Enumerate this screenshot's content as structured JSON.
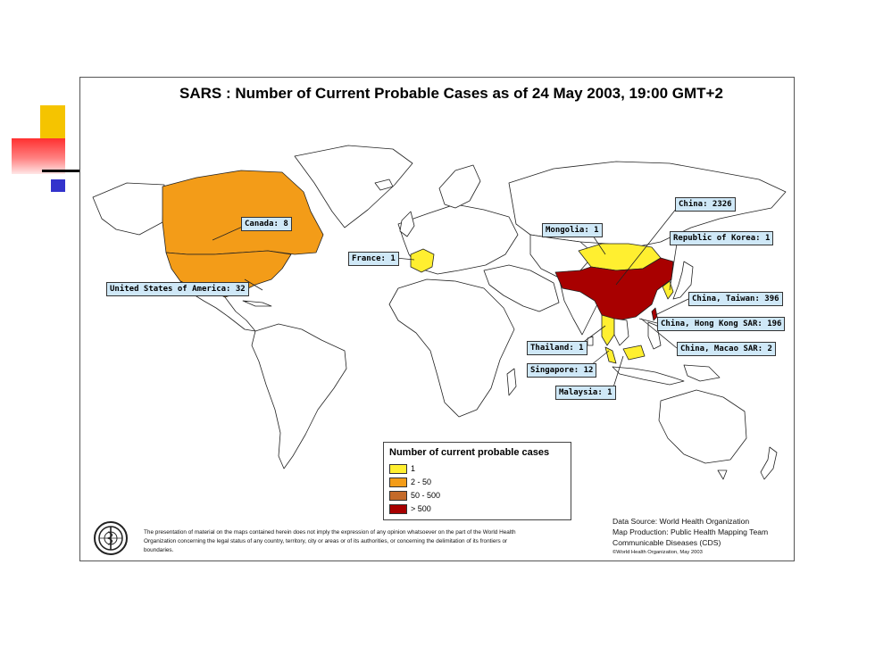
{
  "title": "SARS : Number of Current Probable Cases as of 24 May 2003, 19:00 GMT+2",
  "labels": [
    {
      "key": "canada",
      "text": "Canada: 8"
    },
    {
      "key": "usa",
      "text": "United States of America: 32"
    },
    {
      "key": "france",
      "text": "France: 1"
    },
    {
      "key": "mongolia",
      "text": "Mongolia: 1"
    },
    {
      "key": "china",
      "text": "China: 2326"
    },
    {
      "key": "korea",
      "text": "Republic of Korea: 1"
    },
    {
      "key": "taiwan",
      "text": "China, Taiwan: 396"
    },
    {
      "key": "hongkong",
      "text": "China, Hong Kong SAR: 196"
    },
    {
      "key": "macao",
      "text": "China, Macao SAR: 2"
    },
    {
      "key": "thailand",
      "text": "Thailand: 1"
    },
    {
      "key": "singapore",
      "text": "Singapore: 12"
    },
    {
      "key": "malaysia",
      "text": "Malaysia: 1"
    }
  ],
  "legend": {
    "title": "Number of current probable cases",
    "items": [
      {
        "label": "1",
        "color": "#ffef30"
      },
      {
        "label": "2 - 50",
        "color": "#f39c18"
      },
      {
        "label": "50 - 500",
        "color": "#c46a2a"
      },
      {
        "label": "> 500",
        "color": "#a80000"
      }
    ]
  },
  "disclaimer": "The presentation of material on the maps contained herein does not imply the expression of any opinion whatsoever on the part of the World Health Organization concerning the legal status of any country, territory, city or areas or of its authorities, or concerning the delimitation of its frontiers or boundaries.",
  "source": {
    "line1": "Data Source: World Health Organization",
    "line2": "Map Production: Public Health Mapping Team",
    "line3": "Communicable Diseases (CDS)",
    "copyright": "©World Health Organization, May 2003"
  },
  "colors": {
    "level_1": "#ffef30",
    "level_2_50": "#f39c18",
    "level_50_500": "#c46a2a",
    "level_over_500": "#a80000",
    "label_bg": "#cfe8f7"
  }
}
